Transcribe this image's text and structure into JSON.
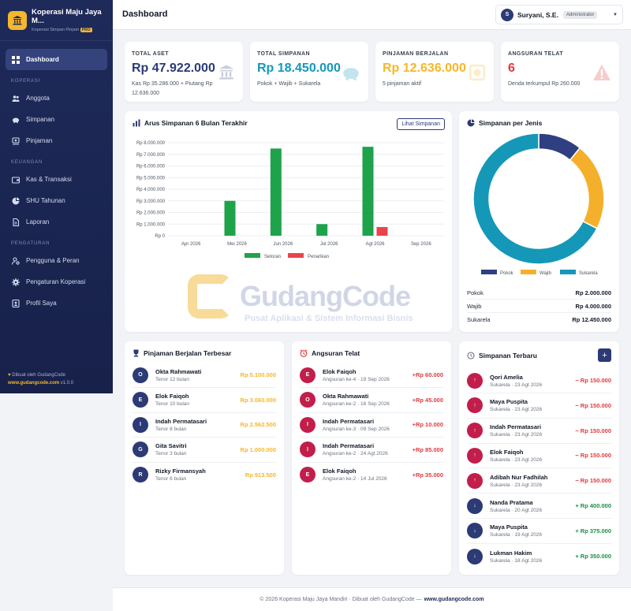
{
  "brand": {
    "title": "Koperasi Maju Jaya M...",
    "subtitle": "Koperasi Simpan Pinjam",
    "badge": "PRO"
  },
  "nav": {
    "dashboard": "Dashboard",
    "section_koperasi": "KOPERASI",
    "anggota": "Anggota",
    "simpanan": "Simpanan",
    "pinjaman": "Pinjaman",
    "section_keuangan": "KEUANGAN",
    "kas": "Kas & Transaksi",
    "shu": "SHU Tahunan",
    "laporan": "Laporan",
    "section_pengaturan": "PENGATURAN",
    "pengguna": "Pengguna & Peran",
    "pengaturan": "Pengaturan Koperasi",
    "profil": "Profil Saya"
  },
  "sidebar_footer": {
    "line1": "Dibuat oleh GudangCode",
    "link": "www.gudangcode.com",
    "version": "v1.0.0"
  },
  "header": {
    "title": "Dashboard",
    "user_initial": "S",
    "user_name": "Suryani, S.E.",
    "user_role": "Administrator"
  },
  "stats": [
    {
      "label": "TOTAL ASET",
      "value": "Rp 47.922.000",
      "sub": "Kas Rp 35.286.000 + Piutang Rp 12.636.000",
      "color": "#2c3a75",
      "icon": "bank-icon"
    },
    {
      "label": "TOTAL SIMPANAN",
      "value": "Rp 18.450.000",
      "sub": "Pokok + Wajib + Sukarela",
      "color": "#1598b8",
      "icon": "piggy-bank-icon"
    },
    {
      "label": "PINJAMAN BERJALAN",
      "value": "Rp 12.636.000",
      "sub": "5 pinjaman aktif",
      "color": "#f5b72b",
      "icon": "money-icon"
    },
    {
      "label": "ANGSURAN TELAT",
      "value": "6",
      "sub": "Denda terkumpul Rp 260.000",
      "color": "#e03a3e",
      "icon": "warning-icon"
    }
  ],
  "flow_card": {
    "title": "Arus Simpanan 6 Bulan Terakhir",
    "button": "Lihat Simpanan"
  },
  "chart_data": [
    {
      "type": "bar",
      "title": "Arus Simpanan 6 Bulan Terakhir",
      "categories": [
        "Apr 2026",
        "Mei 2026",
        "Jun 2026",
        "Jul 2026",
        "Agt 2026",
        "Sep 2026"
      ],
      "series": [
        {
          "name": "Setoran",
          "color": "#1ea34a",
          "values": [
            0,
            3000000,
            7500000,
            1000000,
            7650000,
            0
          ]
        },
        {
          "name": "Penarikan",
          "color": "#e8454b",
          "values": [
            0,
            0,
            0,
            0,
            750000,
            0
          ]
        }
      ],
      "yticks": [
        "Rp 0",
        "Rp 1.000.000",
        "Rp 2.000.000",
        "Rp 3.000.000",
        "Rp 4.000.000",
        "Rp 5.000.000",
        "Rp 6.000.000",
        "Rp 7.000.000",
        "Rp 8.000.000"
      ],
      "ylim": [
        0,
        8000000
      ],
      "grid": true,
      "legend": "bottom"
    },
    {
      "type": "pie",
      "title": "Simpanan per Jenis",
      "categories": [
        "Pokok",
        "Wajib",
        "Sukarela"
      ],
      "values": [
        2000000,
        4000000,
        12450000
      ],
      "colors": [
        "#2f3f82",
        "#f5b02b",
        "#1598b8"
      ],
      "legend": "bottom"
    }
  ],
  "donut_card": {
    "title": "Simpanan per Jenis",
    "rows": [
      {
        "label": "Pokok",
        "value": "Rp 2.000.000"
      },
      {
        "label": "Wajib",
        "value": "Rp 4.000.000"
      },
      {
        "label": "Sukarela",
        "value": "Rp 12.450.000"
      }
    ]
  },
  "loans": {
    "title": "Pinjaman Berjalan Terbesar",
    "items": [
      {
        "i": "O",
        "name": "Okta Rahmawati",
        "sub": "Tenor 12 bulan",
        "amt": "Rp 5.100.000"
      },
      {
        "i": "E",
        "name": "Elok Faiqoh",
        "sub": "Tenor 10 bulan",
        "amt": "Rp 3.060.000"
      },
      {
        "i": "I",
        "name": "Indah Permatasari",
        "sub": "Tenor 8 bulan",
        "amt": "Rp 2.562.500"
      },
      {
        "i": "G",
        "name": "Gita Savitri",
        "sub": "Tenor 3 bulan",
        "amt": "Rp 1.000.000"
      },
      {
        "i": "R",
        "name": "Rizky Firmansyah",
        "sub": "Tenor 6 bulan",
        "amt": "Rp 913.500"
      }
    ]
  },
  "late": {
    "title": "Angsuran Telat",
    "items": [
      {
        "i": "E",
        "name": "Elok Faiqoh",
        "sub": "Angsuran ke-4 · 19 Sep 2026",
        "amt": "+Rp 60.000"
      },
      {
        "i": "O",
        "name": "Okta Rahmawati",
        "sub": "Angsuran ke-2 · 16 Sep 2026",
        "amt": "+Rp 45.000"
      },
      {
        "i": "I",
        "name": "Indah Permatasari",
        "sub": "Angsuran ke-3 · 09 Sep 2026",
        "amt": "+Rp 10.000"
      },
      {
        "i": "I",
        "name": "Indah Permatasari",
        "sub": "Angsuran ke-2 · 24 Agt 2026",
        "amt": "+Rp 85.000"
      },
      {
        "i": "E",
        "name": "Elok Faiqoh",
        "sub": "Angsuran ke-2 · 14 Jul 2026",
        "amt": "+Rp 35.000"
      }
    ]
  },
  "recent": {
    "title": "Simpanan Terbaru",
    "add_label": "+",
    "items": [
      {
        "dir": "↑",
        "name": "Qori Amelia",
        "sub": "Sukarela · 23 Agt 2026",
        "amt": "− Rp 150.000",
        "out": true
      },
      {
        "dir": "↑",
        "name": "Maya Puspita",
        "sub": "Sukarela · 23 Agt 2026",
        "amt": "− Rp 150.000",
        "out": true
      },
      {
        "dir": "↑",
        "name": "Indah Permatasari",
        "sub": "Sukarela · 23 Agt 2026",
        "amt": "− Rp 150.000",
        "out": true
      },
      {
        "dir": "↑",
        "name": "Elok Faiqoh",
        "sub": "Sukarela · 23 Agt 2026",
        "amt": "− Rp 150.000",
        "out": true
      },
      {
        "dir": "↑",
        "name": "Adibah Nur Fadhilah",
        "sub": "Sukarela · 23 Agt 2026",
        "amt": "− Rp 150.000",
        "out": true
      },
      {
        "dir": "↓",
        "name": "Nanda Pratama",
        "sub": "Sukarela · 20 Agt 2026",
        "amt": "+ Rp 400.000",
        "out": false
      },
      {
        "dir": "↓",
        "name": "Maya Puspita",
        "sub": "Sukarela · 19 Agt 2026",
        "amt": "+ Rp 375.000",
        "out": false
      },
      {
        "dir": "↓",
        "name": "Lukman Hakim",
        "sub": "Sukarela · 18 Agt 2026",
        "amt": "+ Rp 350.000",
        "out": false
      }
    ]
  },
  "watermark": {
    "title": "GudangCode",
    "subtitle": "Pusat Aplikasi & Sistem Informasi Bisnis"
  },
  "footer": {
    "text": "© 2026 Koperasi Maju Jaya Mandiri · Dibuat oleh GudangCode —",
    "link": "www.gudangcode.com"
  }
}
